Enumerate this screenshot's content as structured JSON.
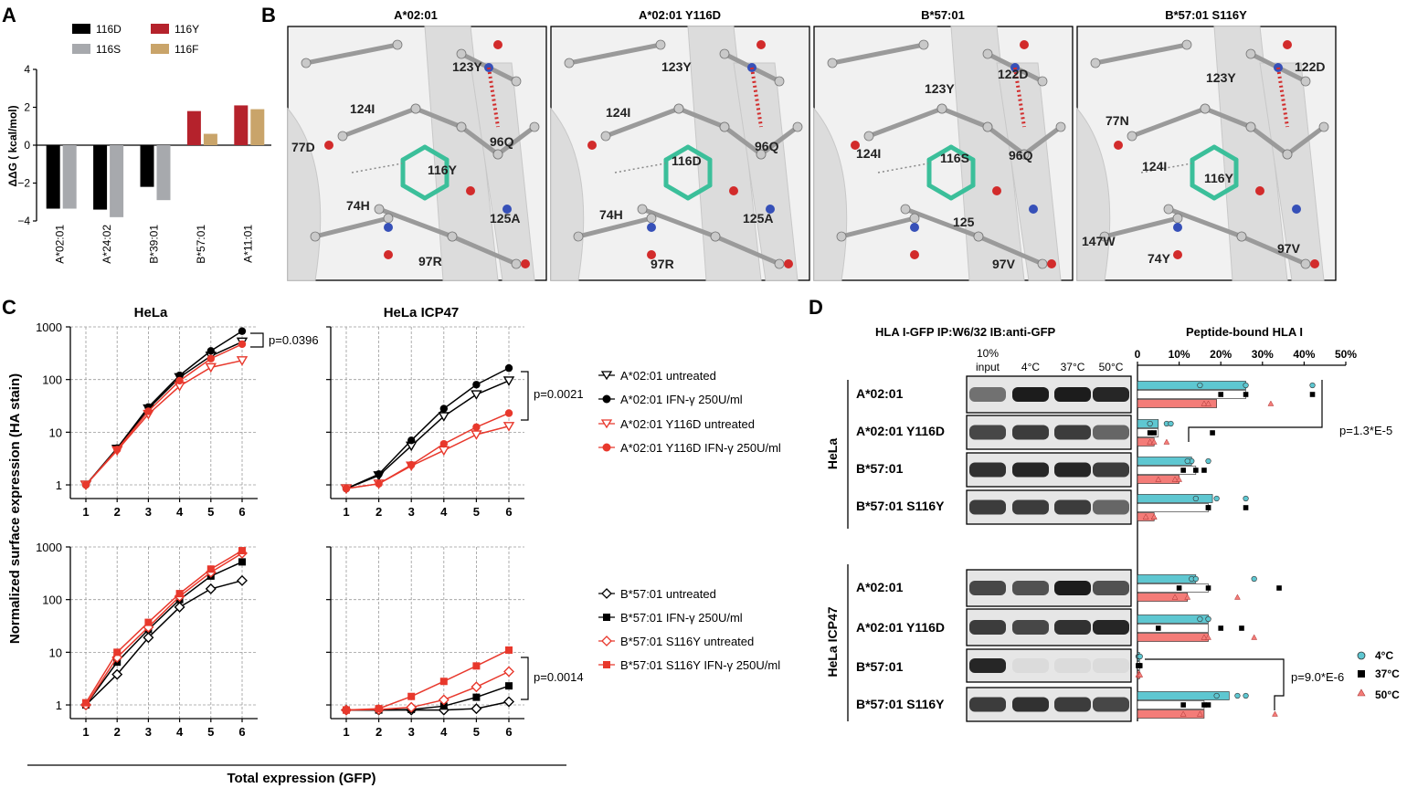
{
  "panels": {
    "A": {
      "letter": "A"
    },
    "B": {
      "letter": "B"
    },
    "C": {
      "letter": "C"
    },
    "D": {
      "letter": "D"
    }
  },
  "panelA": {
    "ylabel": "ΔΔG ( kcal/mol)",
    "legend": [
      {
        "label": "116D",
        "color": "#000000"
      },
      {
        "label": "116S",
        "color": "#a7a9ad"
      },
      {
        "label": "116Y",
        "color": "#b5222c"
      },
      {
        "label": "116F",
        "color": "#c9a46a"
      }
    ]
  },
  "panelB": {
    "titles": [
      "A*02:01",
      "A*02:01 Y116D",
      "B*57:01",
      "B*57:01 S116Y"
    ],
    "labels": [
      [
        "123Y",
        "124I",
        "96Q",
        "77D",
        "116Y",
        "74H",
        "125A",
        "97R"
      ],
      [
        "123Y",
        "124I",
        "96Q",
        "116D",
        "125A",
        "74H",
        "97R"
      ],
      [
        "123Y",
        "122D",
        "124I",
        "116S",
        "96Q",
        "125",
        "97V"
      ],
      [
        "123Y",
        "122D",
        "77N",
        "124I",
        "116Y",
        "147W",
        "74Y",
        "97V"
      ]
    ]
  },
  "panelC": {
    "xlabel": "Total expression (GFP)",
    "ylabel": "Normalized surface expression (HA stain)",
    "titles": {
      "hela": "HeLa",
      "icp47": "HeLa ICP47"
    },
    "pvalues": {
      "top_hela": "p=0.0396",
      "top_icp47": "p=0.0021",
      "bottom_icp47": "p=0.0014"
    },
    "legend_top": [
      "A*02:01 untreated",
      "A*02:01 IFN-γ 250U/ml",
      "A*02:01 Y116D untreated",
      "A*02:01 Y116D IFN-γ 250U/ml"
    ],
    "legend_bottom": [
      "B*57:01 untreated",
      "B*57:01 IFN-γ 250U/ml",
      "B*57:01 S116Y untreated",
      "B*57:01 S116Y IFN-γ 250U/ml"
    ]
  },
  "panelD": {
    "header_left": "HLA I-GFP  IP:W6/32  IB:anti-GFP",
    "header_right": "Peptide-bound HLA I",
    "col_input_line1": "10%",
    "col_input_line2": "input",
    "col_4": "4°C",
    "col_37": "37°C",
    "col_50": "50°C",
    "group_hela": "HeLa",
    "group_icp47": "HeLa ICP47",
    "rows": [
      "A*02:01",
      "A*02:01 Y116D",
      "B*57:01",
      "B*57:01 S116Y",
      "A*02:01",
      "A*02:01 Y116D",
      "B*57:01",
      "B*57:01 S116Y"
    ],
    "p_hela": "p=1.3*E-5",
    "p_icp47": "p=9.0*E-6",
    "legend": [
      "4°C",
      "37°C",
      "50°C"
    ]
  },
  "chart_data": [
    {
      "panel": "A",
      "type": "bar",
      "categories": [
        "A*02:01",
        "A*24:02",
        "B*39:01",
        "B*57:01",
        "A*11:01"
      ],
      "series": [
        {
          "name": "116D",
          "color": "#000000",
          "values": [
            -3.35,
            -3.4,
            -2.2,
            null,
            null
          ]
        },
        {
          "name": "116S",
          "color": "#a7a9ad",
          "values": [
            -3.35,
            -3.8,
            -2.9,
            null,
            null
          ]
        },
        {
          "name": "116Y",
          "color": "#b5222c",
          "values": [
            null,
            null,
            null,
            1.8,
            2.1
          ]
        },
        {
          "name": "116F",
          "color": "#c9a46a",
          "values": [
            null,
            null,
            null,
            0.6,
            1.9
          ]
        }
      ],
      "ylim": [
        -4,
        4
      ],
      "yticks": [
        4,
        2,
        0,
        -2,
        -4
      ]
    },
    {
      "panel": "C-HeLa-A0201",
      "type": "line",
      "x": [
        1,
        2,
        3,
        4,
        5,
        6
      ],
      "yscale": "log",
      "ylim": [
        1,
        1000
      ],
      "yticks": [
        "1",
        "10",
        "100",
        "1000"
      ],
      "series": [
        {
          "name": "A*02:01 untreated",
          "color": "#000000",
          "marker": "triangle-down-open",
          "values": [
            1,
            4.8,
            28,
            110,
            280,
            520
          ]
        },
        {
          "name": "A*02:01 IFN-γ 250U/ml",
          "color": "#000000",
          "marker": "circle-filled",
          "values": [
            1,
            5,
            30,
            120,
            350,
            830
          ]
        },
        {
          "name": "A*02:01 Y116D untreated",
          "color": "#e8382c",
          "marker": "triangle-down-open",
          "values": [
            1,
            4.5,
            22,
            75,
            170,
            230
          ]
        },
        {
          "name": "A*02:01 Y116D IFN-γ 250U/ml",
          "color": "#e8382c",
          "marker": "circle-filled",
          "values": [
            1,
            4.7,
            25,
            95,
            250,
            470
          ]
        }
      ]
    },
    {
      "panel": "C-ICP47-A0201",
      "type": "line",
      "x": [
        1,
        2,
        3,
        4,
        5,
        6
      ],
      "yscale": "log",
      "ylim": [
        1,
        1000
      ],
      "series": [
        {
          "name": "A*02:01 untreated",
          "color": "#000000",
          "marker": "triangle-down-open",
          "values": [
            0.85,
            1.5,
            5.5,
            20,
            52,
            95
          ]
        },
        {
          "name": "A*02:01 IFN-γ 250U/ml",
          "color": "#000000",
          "marker": "circle-filled",
          "values": [
            0.85,
            1.6,
            7,
            28,
            80,
            165
          ]
        },
        {
          "name": "A*02:01 Y116D untreated",
          "color": "#e8382c",
          "marker": "triangle-down-open",
          "values": [
            0.85,
            1.05,
            2.3,
            4.5,
            9,
            13
          ]
        },
        {
          "name": "A*02:01 Y116D IFN-γ 250U/ml",
          "color": "#e8382c",
          "marker": "circle-filled",
          "values": [
            0.85,
            1.05,
            2.4,
            6,
            12.5,
            23
          ]
        }
      ]
    },
    {
      "panel": "C-HeLa-B5701",
      "type": "line",
      "x": [
        1,
        2,
        3,
        4,
        5,
        6
      ],
      "yscale": "log",
      "ylim": [
        1,
        1000
      ],
      "series": [
        {
          "name": "B*57:01 untreated",
          "color": "#000000",
          "marker": "diamond-open",
          "values": [
            1,
            3.8,
            19,
            72,
            160,
            230
          ]
        },
        {
          "name": "B*57:01 IFN-γ 250U/ml",
          "color": "#000000",
          "marker": "square-filled",
          "values": [
            1,
            6.5,
            27,
            100,
            280,
            520
          ]
        },
        {
          "name": "B*57:01 S116Y untreated",
          "color": "#e8382c",
          "marker": "diamond-open",
          "values": [
            1,
            8,
            30,
            115,
            330,
            760
          ]
        },
        {
          "name": "B*57:01 S116Y IFN-γ 250U/ml",
          "color": "#e8382c",
          "marker": "square-filled",
          "values": [
            1.1,
            10,
            37,
            130,
            380,
            850
          ]
        }
      ]
    },
    {
      "panel": "C-ICP47-B5701",
      "type": "line",
      "x": [
        1,
        2,
        3,
        4,
        5,
        6
      ],
      "yscale": "log",
      "ylim": [
        1,
        1000
      ],
      "series": [
        {
          "name": "B*57:01 untreated",
          "color": "#000000",
          "marker": "diamond-open",
          "values": [
            0.8,
            0.8,
            0.8,
            0.8,
            0.85,
            1.15
          ]
        },
        {
          "name": "B*57:01 IFN-γ 250U/ml",
          "color": "#000000",
          "marker": "square-filled",
          "values": [
            0.8,
            0.8,
            0.82,
            0.95,
            1.4,
            2.3
          ]
        },
        {
          "name": "B*57:01 S116Y untreated",
          "color": "#e8382c",
          "marker": "diamond-open",
          "values": [
            0.8,
            0.82,
            0.9,
            1.25,
            2.2,
            4.3
          ]
        },
        {
          "name": "B*57:01 S116Y IFN-γ 250U/ml",
          "color": "#e8382c",
          "marker": "square-filled",
          "values": [
            0.8,
            0.85,
            1.45,
            2.8,
            5.5,
            11
          ]
        }
      ]
    },
    {
      "panel": "D",
      "type": "bar",
      "orientation": "horizontal",
      "unit": "%",
      "xlim": [
        0,
        50
      ],
      "xticks": [
        "0",
        "10%",
        "20%",
        "30%",
        "40%",
        "50%"
      ],
      "categories": [
        "HeLa A*02:01",
        "HeLa A*02:01 Y116D",
        "HeLa B*57:01",
        "HeLa B*57:01 S116Y",
        "HeLa ICP47 A*02:01",
        "HeLa ICP47 A*02:01 Y116D",
        "HeLa ICP47 B*57:01",
        "HeLa ICP47 B*57:01 S116Y"
      ],
      "series": [
        {
          "name": "4°C",
          "color": "#5ec7d1",
          "values": [
            26,
            5,
            13,
            18,
            14,
            17,
            0.5,
            22
          ]
        },
        {
          "name": "37°C",
          "color": "#ffffff",
          "values": [
            26,
            5,
            14,
            17,
            17,
            17,
            0.5,
            16
          ]
        },
        {
          "name": "50°C",
          "color": "#f47c78",
          "values": [
            19,
            4,
            10,
            4,
            12,
            17,
            0.5,
            16
          ]
        }
      ],
      "points": [
        {
          "series": "4°C",
          "values": [
            [
              15,
              26,
              42
            ],
            [
              3,
              7,
              8
            ],
            [
              13,
              12,
              17
            ],
            [
              19,
              26,
              14
            ],
            [
              13,
              28,
              14
            ],
            [
              17,
              15,
              17
            ],
            [
              0.2,
              0.4,
              0.6
            ],
            [
              19,
              24,
              26
            ]
          ]
        },
        {
          "series": "37°C",
          "values": [
            [
              20,
              26,
              42
            ],
            [
              3,
              4,
              18
            ],
            [
              14,
              16,
              11
            ],
            [
              17,
              26,
              17
            ],
            [
              10,
              17,
              34
            ],
            [
              5,
              20,
              25
            ],
            [
              0.2,
              0.4,
              0.6
            ],
            [
              11,
              16,
              17
            ]
          ]
        },
        {
          "series": "50°C",
          "values": [
            [
              16,
              17,
              32
            ],
            [
              3,
              4,
              7
            ],
            [
              5,
              9,
              10
            ],
            [
              2,
              4,
              4
            ],
            [
              9,
              12,
              24
            ],
            [
              16,
              17,
              28
            ],
            [
              0.2,
              0.4,
              0.6
            ],
            [
              11,
              15,
              33
            ]
          ]
        }
      ]
    }
  ]
}
